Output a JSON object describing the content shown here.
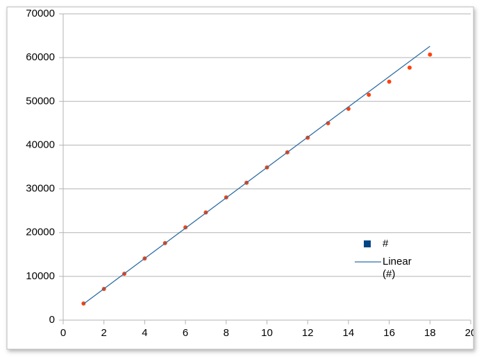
{
  "chart_data": {
    "type": "scatter",
    "x": [
      1,
      2,
      3,
      4,
      5,
      6,
      7,
      8,
      9,
      10,
      11,
      12,
      13,
      14,
      15,
      16,
      17,
      18
    ],
    "series": [
      {
        "name": "#",
        "color": "#004586",
        "marker_color": "#ff420e",
        "values": [
          3800,
          7130,
          10600,
          14100,
          17600,
          21200,
          24600,
          28050,
          31400,
          34900,
          38350,
          41700,
          45000,
          48300,
          51500,
          54500,
          57700,
          60700
        ]
      },
      {
        "name": "Linear (#)",
        "type": "line",
        "color": "#2e6da4",
        "x": [
          1,
          18
        ],
        "values": [
          3700,
          62600
        ]
      }
    ],
    "xlim": [
      0,
      20
    ],
    "xticks": [
      0,
      2,
      4,
      6,
      8,
      10,
      12,
      14,
      16,
      18,
      20
    ],
    "ylim": [
      0,
      70000
    ],
    "yticks": [
      0,
      10000,
      20000,
      30000,
      40000,
      50000,
      60000,
      70000
    ],
    "grid": true
  }
}
